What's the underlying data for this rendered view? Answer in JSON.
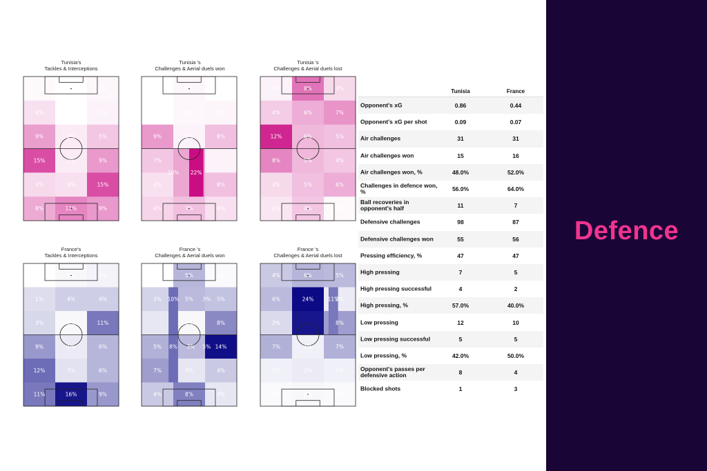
{
  "section_title": "Defence",
  "colors": {
    "tunisia_scale_max": "#c8007e",
    "france_scale_max": "#0c0a85",
    "panel_bg": "#1a0537",
    "accent": "#f0348f"
  },
  "chart_data": [
    {
      "type": "heatmap",
      "team": "Tunisia",
      "title_line1": "Tunisia's",
      "title_line2": "Tackles & Interceptions",
      "cells": [
        {
          "label": "0%",
          "v": 0.02
        },
        {
          "label": "0%",
          "v": 0.0
        },
        {
          "label": "0%",
          "v": 0.03
        },
        {
          "label": "4%",
          "v": 0.12
        },
        {
          "label": "0%",
          "v": 0.0
        },
        {
          "label": "1%",
          "v": 0.05
        },
        {
          "label": "9%",
          "v": 0.38
        },
        {
          "label": "2%",
          "v": 0.08
        },
        {
          "label": "5%",
          "v": 0.22
        },
        {
          "label": "15%",
          "v": 0.7
        },
        {
          "label": "2%",
          "v": 0.08
        },
        {
          "label": "9%",
          "v": 0.4
        },
        {
          "label": "4%",
          "v": 0.15
        },
        {
          "label": "3%",
          "v": 0.12
        },
        {
          "label": "15%",
          "v": 0.7
        },
        {
          "label": "8%",
          "v": 0.33
        },
        {
          "label": "11%",
          "v": 0.48
        },
        {
          "label": "9%",
          "v": 0.4
        }
      ]
    },
    {
      "type": "heatmap",
      "team": "Tunisia",
      "title_line1": "Tunisia 's",
      "title_line2": "Challenges & Aerial duels won",
      "cells": [
        {
          "label": "0%",
          "v": 0.0
        },
        {
          "label": "0%",
          "v": 0.03
        },
        {
          "label": "0%",
          "v": 0.0
        },
        {
          "label": "0%",
          "v": 0.0
        },
        {
          "label": "0%",
          "v": 0.03
        },
        {
          "label": "0%",
          "v": 0.04
        },
        {
          "label": "9%",
          "v": 0.4
        },
        {
          "label": "0%",
          "v": 0.05
        },
        {
          "label": "8%",
          "v": 0.25
        },
        {
          "label": "7%",
          "v": 0.22
        },
        {
          "label": "",
          "v": 0.35
        },
        {
          "label": "",
          "v": 0.05
        },
        {
          "label": "4%",
          "v": 0.12
        },
        {
          "label": "",
          "v": 0.35
        },
        {
          "label": "8%",
          "v": 0.25
        },
        {
          "label": "6%",
          "v": 0.17
        },
        {
          "label": "7%",
          "v": 0.25
        },
        {
          "label": "4%",
          "v": 0.12
        }
      ],
      "overlay_labels": [
        {
          "label": "10%",
          "col": 1.0,
          "row": 4.0
        },
        {
          "label": "22%",
          "col": 1.72,
          "row": 4.0
        }
      ],
      "center_strip": {
        "col_start": 1.5,
        "col_end": 1.95,
        "row_start": 3,
        "row_end": 5,
        "v": 0.95
      }
    },
    {
      "type": "heatmap",
      "team": "Tunisia",
      "title_line1": "Tunisia 's",
      "title_line2": "Challenges & Aerial duels lost",
      "cells": [
        {
          "label": "1%",
          "v": 0.05
        },
        {
          "label": "8%",
          "v": 0.55
        },
        {
          "label": "3%",
          "v": 0.15
        },
        {
          "label": "4%",
          "v": 0.2
        },
        {
          "label": "6%",
          "v": 0.32
        },
        {
          "label": "7%",
          "v": 0.42
        },
        {
          "label": "12%",
          "v": 0.85
        },
        {
          "label": "6%",
          "v": 0.28
        },
        {
          "label": "5%",
          "v": 0.25
        },
        {
          "label": "8%",
          "v": 0.48
        },
        {
          "label": "5%",
          "v": 0.28
        },
        {
          "label": "4%",
          "v": 0.22
        },
        {
          "label": "3%",
          "v": 0.15
        },
        {
          "label": "5%",
          "v": 0.25
        },
        {
          "label": "6%",
          "v": 0.32
        },
        {
          "label": "2%",
          "v": 0.1
        },
        {
          "label": "4%",
          "v": 0.22
        },
        {
          "label": "0%",
          "v": 0.02
        }
      ]
    },
    {
      "type": "heatmap",
      "team": "France",
      "title_line1": "France's",
      "title_line2": "Tackles & Interceptions",
      "cells": [
        {
          "label": "0%",
          "v": 0.0
        },
        {
          "label": "0%",
          "v": 0.03
        },
        {
          "label": "0%",
          "v": 0.05
        },
        {
          "label": "1%",
          "v": 0.14
        },
        {
          "label": "4%",
          "v": 0.2
        },
        {
          "label": "4%",
          "v": 0.2
        },
        {
          "label": "3%",
          "v": 0.16
        },
        {
          "label": "0%",
          "v": 0.03
        },
        {
          "label": "11%",
          "v": 0.55
        },
        {
          "label": "9%",
          "v": 0.42
        },
        {
          "label": "1%",
          "v": 0.08
        },
        {
          "label": "6%",
          "v": 0.3
        },
        {
          "label": "12%",
          "v": 0.6
        },
        {
          "label": "3%",
          "v": 0.12
        },
        {
          "label": "6%",
          "v": 0.3
        },
        {
          "label": "11%",
          "v": 0.55
        },
        {
          "label": "16%",
          "v": 0.95
        },
        {
          "label": "9%",
          "v": 0.42
        }
      ]
    },
    {
      "type": "heatmap",
      "team": "France",
      "title_line1": "France 's",
      "title_line2": "Challenges & Aerial duels won",
      "cells": [
        {
          "label": "0%",
          "v": 0.0
        },
        {
          "label": "5%",
          "v": 0.3
        },
        {
          "label": "0%",
          "v": 0.02
        },
        {
          "label": "3%",
          "v": 0.18
        },
        {
          "label": "5%",
          "v": 0.28
        },
        {
          "label": "5%",
          "v": 0.25
        },
        {
          "label": "",
          "v": 0.1
        },
        {
          "label": "0%",
          "v": 0.03
        },
        {
          "label": "8%",
          "v": 0.48
        },
        {
          "label": "5%",
          "v": 0.32
        },
        {
          "label": "",
          "v": 0.28
        },
        {
          "label": "14%",
          "v": 0.98
        },
        {
          "label": "7%",
          "v": 0.4
        },
        {
          "label": "3%",
          "v": 0.1
        },
        {
          "label": "4%",
          "v": 0.22
        },
        {
          "label": "4%",
          "v": 0.22
        },
        {
          "label": "8%",
          "v": 0.52
        },
        {
          "label": "2%",
          "v": 0.1
        }
      ],
      "overlay_labels": [
        {
          "label": "10%",
          "col": 1.0,
          "row": 1.5
        },
        {
          "label": "3%",
          "col": 2.05,
          "row": 1.5
        },
        {
          "label": "8%",
          "col": 1.0,
          "row": 3.5
        },
        {
          "label": "3%",
          "col": 1.55,
          "row": 3.5
        },
        {
          "label": "5%",
          "col": 2.05,
          "row": 3.5
        }
      ],
      "left_strip": {
        "col_start": 0.85,
        "col_end": 1.15,
        "row_start": 1,
        "row_end": 5,
        "v": 0.6
      }
    },
    {
      "type": "heatmap",
      "team": "France",
      "title_line1": "France 's",
      "title_line2": "Challenges & Aerial duels lost",
      "cells": [
        {
          "label": "4%",
          "v": 0.22
        },
        {
          "label": "6%",
          "v": 0.3
        },
        {
          "label": "5%",
          "v": 0.28
        },
        {
          "label": "6%",
          "v": 0.28
        },
        {
          "label": "24%",
          "v": 1.0
        },
        {
          "label": "2%",
          "v": 0.08
        },
        {
          "label": "3%",
          "v": 0.15
        },
        {
          "label": "",
          "v": 0.95
        },
        {
          "label": "8%",
          "v": 0.4
        },
        {
          "label": "7%",
          "v": 0.32
        },
        {
          "label": "1%",
          "v": 0.06
        },
        {
          "label": "7%",
          "v": 0.32
        },
        {
          "label": "1%",
          "v": 0.06
        },
        {
          "label": "1%",
          "v": 0.08
        },
        {
          "label": "1%",
          "v": 0.06
        },
        {
          "label": "0%",
          "v": 0.02
        },
        {
          "label": "0%",
          "v": 0.03
        },
        {
          "label": "0%",
          "v": 0.02
        }
      ],
      "overlay_labels": [
        {
          "label": "11%",
          "col": 2.3,
          "row": 1.5
        }
      ],
      "right_strip": {
        "col_start": 2.15,
        "col_end": 2.45,
        "row_start": 1,
        "row_end": 3,
        "v": 0.55
      }
    },
    {
      "type": "table",
      "columns": [
        "",
        "Tunisia",
        "France"
      ],
      "rows": [
        [
          "Opponent's xG",
          "0.86",
          "0.44"
        ],
        [
          "Opponent's xG per shot",
          "0.09",
          "0.07"
        ],
        [
          "Air challenges",
          "31",
          "31"
        ],
        [
          "Air challenges won",
          "15",
          "16"
        ],
        [
          "Air challenges won, %",
          "48.0%",
          "52.0%"
        ],
        [
          "Challenges in defence won, %",
          "56.0%",
          "64.0%"
        ],
        [
          "Ball recoveries in opponent's half",
          "11",
          "7"
        ],
        [
          "Defensive challenges",
          "98",
          "87"
        ],
        [
          "Defensive challenges won",
          "55",
          "56"
        ],
        [
          "Pressing efficiency, %",
          "47",
          "47"
        ],
        [
          "High pressing",
          "7",
          "5"
        ],
        [
          "High pressing successful",
          "4",
          "2"
        ],
        [
          "High pressing, %",
          "57.0%",
          "40.0%"
        ],
        [
          "Low pressing",
          "12",
          "10"
        ],
        [
          "Low pressing successful",
          "5",
          "5"
        ],
        [
          "Low pressing, %",
          "42.0%",
          "50.0%"
        ],
        [
          "Opponent's passes per defensive action",
          "8",
          "4"
        ],
        [
          "Blocked shots",
          "1",
          "3"
        ]
      ]
    }
  ]
}
